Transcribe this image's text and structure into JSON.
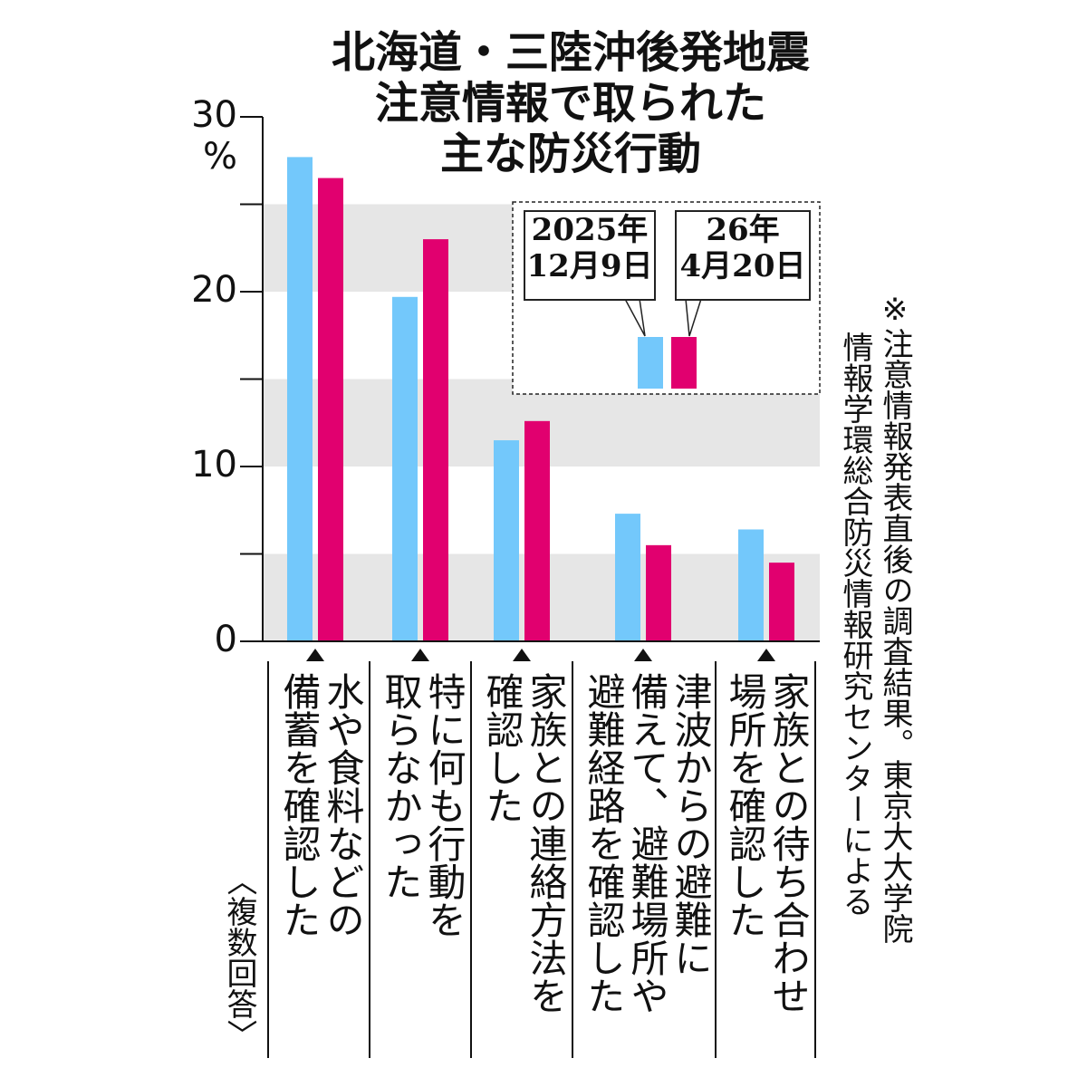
{
  "title": [
    "北海道・三陸沖後発地震",
    "注意情報で取られた",
    "主な防災行動"
  ],
  "chart_data": {
    "type": "bar",
    "title": "北海道・三陸沖後発地震注意情報で取られた主な防災行動",
    "ylabel": "%",
    "ylim": [
      0,
      30
    ],
    "yticks": [
      "0",
      "10",
      "20",
      "30"
    ],
    "categories": [
      [
        "水や食料などの",
        "備蓄を確認した"
      ],
      [
        "特に何も行動を",
        "取らなかった"
      ],
      [
        "家族との連絡方法を",
        "確認した"
      ],
      [
        "津波からの避難に",
        "備えて、避難場所や",
        "避難経路を確認した"
      ],
      [
        "家族との待ち合わせ",
        "場所を確認した"
      ]
    ],
    "series": [
      {
        "name": "2025年12月9日",
        "name_lines": [
          "2025年",
          "12月9日"
        ],
        "color": "#73c8fb",
        "values": [
          27.7,
          19.7,
          11.5,
          7.3,
          6.4
        ]
      },
      {
        "name": "26年4月20日",
        "name_lines": [
          "26年",
          "4月20日"
        ],
        "color": "#e1006f",
        "values": [
          26.5,
          23.0,
          12.6,
          5.5,
          4.5
        ]
      }
    ],
    "grid_bands": "alternating grey bands every 5 units",
    "legend": "top-right"
  },
  "note": [
    "※",
    "注意情報発表直後の調査結果。東京大大学院",
    "情報学環総合防災情報研究センターによる"
  ],
  "multiple_answer": "〈複数回答〉"
}
